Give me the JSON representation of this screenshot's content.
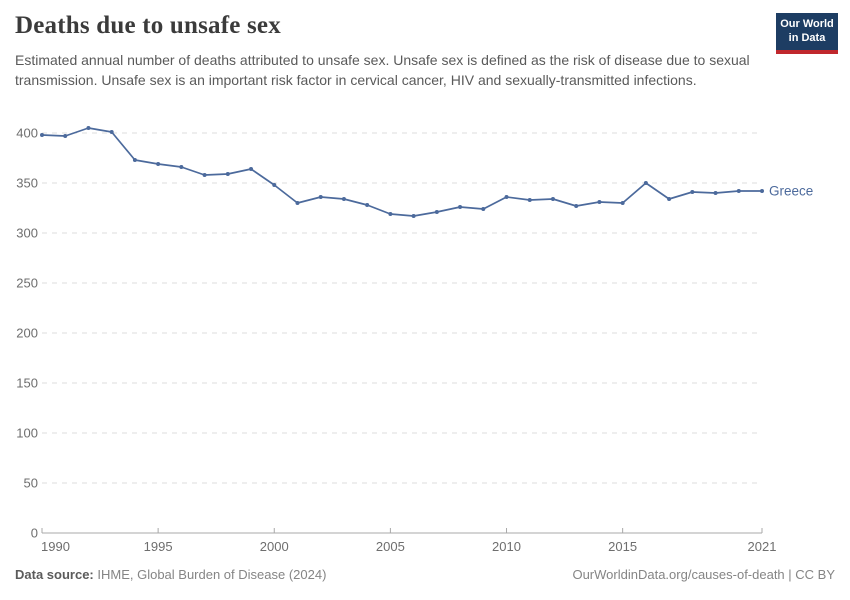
{
  "header": {
    "title": "Deaths due to unsafe sex",
    "subtitle": "Estimated annual number of deaths attributed to unsafe sex. Unsafe sex is defined as the risk of disease due to sexual transmission. Unsafe sex is an important risk factor in cervical cancer, HIV and sexually-transmitted infections.",
    "logo": {
      "line1": "Our World",
      "line2": "in Data",
      "bg_color": "#1d3d63",
      "bar_color": "#c0272d"
    }
  },
  "chart_data": {
    "type": "line",
    "title": "Deaths due to unsafe sex",
    "xlabel": "",
    "ylabel": "",
    "x": [
      1990,
      1991,
      1992,
      1993,
      1994,
      1995,
      1996,
      1997,
      1998,
      1999,
      2000,
      2001,
      2002,
      2003,
      2004,
      2005,
      2006,
      2007,
      2008,
      2009,
      2010,
      2011,
      2012,
      2013,
      2014,
      2015,
      2016,
      2017,
      2018,
      2019,
      2020,
      2021
    ],
    "series": [
      {
        "name": "Greece",
        "color": "#4C6A9C",
        "values": [
          398,
          397,
          405,
          401,
          373,
          369,
          366,
          358,
          359,
          364,
          348,
          330,
          336,
          334,
          328,
          319,
          317,
          321,
          326,
          324,
          336,
          333,
          334,
          327,
          331,
          330,
          350,
          334,
          341,
          340,
          342,
          342
        ]
      }
    ],
    "x_ticks": [
      1990,
      1995,
      2000,
      2005,
      2010,
      2015,
      2021
    ],
    "y_ticks": [
      0,
      50,
      100,
      150,
      200,
      250,
      300,
      350,
      400
    ],
    "xlim": [
      1990,
      2021
    ],
    "ylim": [
      0,
      400
    ],
    "grid": "horizontal-dashed",
    "legend_position": "end-of-line-label",
    "colors": {
      "gridline": "#dcdcdc",
      "axis": "#a8a8a8",
      "tick_text": "#6e6e6e"
    }
  },
  "footer": {
    "source_label": "Data source:",
    "source_rest": " IHME, Global Burden of Disease (2024)",
    "link_text": "OurWorldinData.org/causes-of-death | CC BY"
  }
}
